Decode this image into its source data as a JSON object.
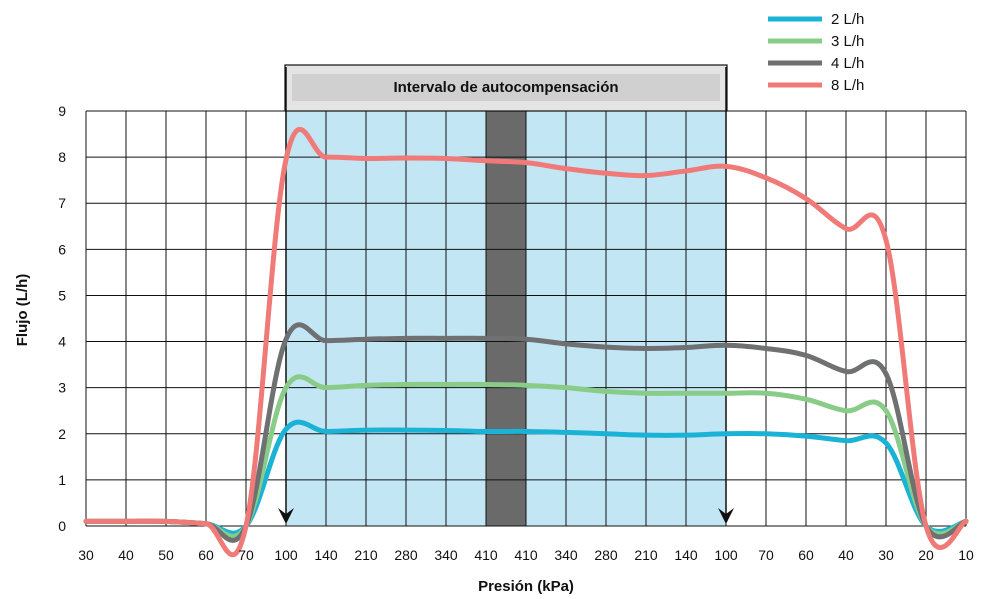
{
  "chart_data": {
    "type": "line",
    "title": "",
    "xlabel": "Presión (kPa)",
    "ylabel": "Flujo (L/h)",
    "ylim": [
      0,
      9
    ],
    "yticks": [
      "0",
      "1",
      "2",
      "3",
      "4",
      "5",
      "6",
      "7",
      "8",
      "9"
    ],
    "x_tick_labels": [
      "30",
      "40",
      "50",
      "60",
      "70",
      "100",
      "140",
      "210",
      "280",
      "340",
      "410",
      "410",
      "340",
      "280",
      "210",
      "140",
      "100",
      "70",
      "60",
      "40",
      "30",
      "20",
      "10"
    ],
    "grid": true,
    "legend_position": "top-right",
    "band_label": "Intervalo de autocompensación",
    "band_range": [
      "100",
      "100"
    ],
    "peak_band_range": [
      "410",
      "410"
    ],
    "x": [
      "30",
      "40",
      "50",
      "60",
      "70",
      "100",
      "140",
      "210",
      "280",
      "340",
      "410",
      "410",
      "340",
      "280",
      "210",
      "140",
      "100",
      "70",
      "60",
      "40",
      "30",
      "20",
      "10"
    ],
    "series": [
      {
        "name": "2 L/h",
        "color": "#1ab3d6",
        "values": [
          0.1,
          0.1,
          0.1,
          0.05,
          0,
          2.1,
          2.05,
          2.08,
          2.08,
          2.07,
          2.05,
          2.05,
          2.03,
          2.0,
          1.97,
          1.97,
          2.0,
          2.0,
          1.95,
          1.85,
          1.8,
          0,
          0.1
        ]
      },
      {
        "name": "3 L/h",
        "color": "#88cc88",
        "values": [
          0.1,
          0.1,
          0.1,
          0.05,
          0,
          3.0,
          3.0,
          3.05,
          3.07,
          3.07,
          3.07,
          3.05,
          3.0,
          2.92,
          2.88,
          2.88,
          2.88,
          2.88,
          2.75,
          2.5,
          2.5,
          0,
          0.1
        ]
      },
      {
        "name": "4 L/h",
        "color": "#6e7072",
        "values": [
          0.1,
          0.1,
          0.1,
          0.05,
          0,
          4.05,
          4.02,
          4.05,
          4.07,
          4.07,
          4.07,
          4.05,
          3.95,
          3.88,
          3.85,
          3.87,
          3.92,
          3.85,
          3.7,
          3.35,
          3.3,
          0,
          0.1
        ]
      },
      {
        "name": "8 L/h",
        "color": "#f07a78",
        "values": [
          0.1,
          0.1,
          0.1,
          0.05,
          0,
          7.95,
          8.0,
          7.97,
          7.98,
          7.97,
          7.92,
          7.88,
          7.75,
          7.65,
          7.6,
          7.7,
          7.8,
          7.55,
          7.1,
          6.45,
          6.2,
          0,
          0.1
        ]
      }
    ]
  }
}
